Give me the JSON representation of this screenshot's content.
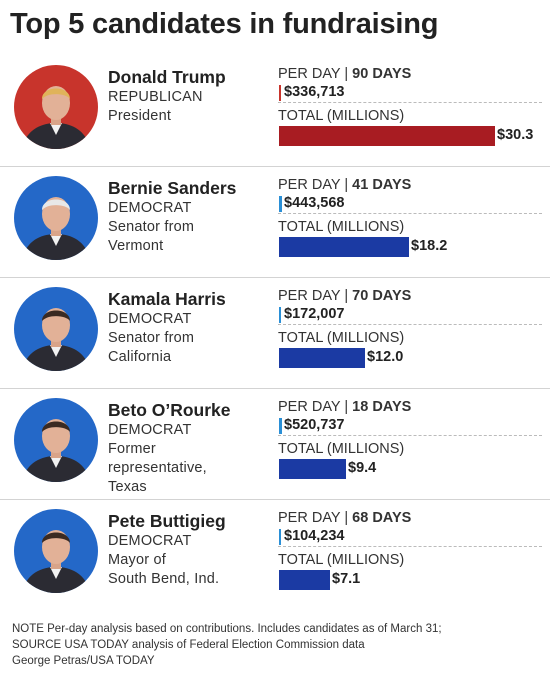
{
  "title": "Top 5 candidates in fundraising",
  "chart_data": {
    "type": "bar",
    "title": "Top 5 candidates in fundraising",
    "xlabel": "",
    "ylabel": "",
    "series_label_perday": "PER DAY",
    "series_label_total": "TOTAL (MILLIONS)",
    "days_unit": "DAYS",
    "candidates": [
      {
        "name": "Donald Trump",
        "party": "REPUBLICAN",
        "office": [
          "President"
        ],
        "days": 90,
        "per_day": 336713,
        "per_day_label": "$336,713",
        "total": 30.3,
        "total_label": "$30.3",
        "color": "#a81c22",
        "tick_color": "#c8342c",
        "avatar_bg": "#c8342c"
      },
      {
        "name": "Bernie Sanders",
        "party": "DEMOCRAT",
        "office": [
          "Senator from",
          "Vermont"
        ],
        "days": 41,
        "per_day": 443568,
        "per_day_label": "$443,568",
        "total": 18.2,
        "total_label": "$18.2",
        "color": "#1b3aa3",
        "tick_color": "#2a8fd6",
        "avatar_bg": "#2468c8"
      },
      {
        "name": "Kamala Harris",
        "party": "DEMOCRAT",
        "office": [
          "Senator from",
          "California"
        ],
        "days": 70,
        "per_day": 172007,
        "per_day_label": "$172,007",
        "total": 12.0,
        "total_label": "$12.0",
        "color": "#1b3aa3",
        "tick_color": "#2a8fd6",
        "avatar_bg": "#2468c8"
      },
      {
        "name": "Beto O’Rourke",
        "party": "DEMOCRAT",
        "office": [
          "Former",
          "representative,",
          "Texas"
        ],
        "days": 18,
        "per_day": 520737,
        "per_day_label": "$520,737",
        "total": 9.4,
        "total_label": "$9.4",
        "color": "#1b3aa3",
        "tick_color": "#2a8fd6",
        "avatar_bg": "#2468c8"
      },
      {
        "name": "Pete Buttigieg",
        "party": "DEMOCRAT",
        "office": [
          "Mayor of",
          "South Bend, Ind."
        ],
        "days": 68,
        "per_day": 104234,
        "per_day_label": "$104,234",
        "total": 7.1,
        "total_label": "$7.1",
        "color": "#1b3aa3",
        "tick_color": "#2a8fd6",
        "avatar_bg": "#2468c8"
      }
    ]
  },
  "footer": {
    "note": "NOTE Per-day analysis based on contributions. Includes candidates as of March 31;",
    "source": "SOURCE USA TODAY analysis of Federal Election Commission data",
    "credit": "George Petras/USA TODAY"
  }
}
